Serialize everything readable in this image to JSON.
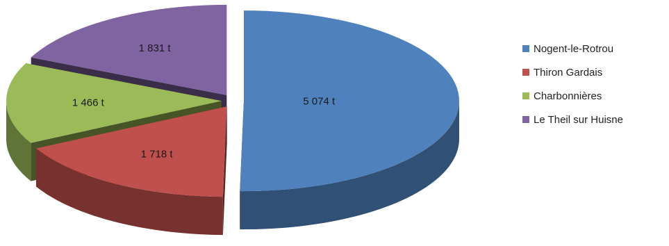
{
  "chart_data": {
    "type": "pie",
    "title": "",
    "categories": [
      "Nogent-le-Rotrou",
      "Thiron Gardais",
      "Charbonnières",
      "Le Theil sur Huisne"
    ],
    "values": [
      5074,
      1718,
      1466,
      1831
    ],
    "value_labels": [
      "5 074 t",
      "1 718 t",
      "1 466 t",
      "1 831 t"
    ],
    "colors": [
      "#4f81bd",
      "#c0504d",
      "#9bbb59",
      "#8064a2"
    ],
    "style": "3d-exploded",
    "legend_position": "right"
  }
}
